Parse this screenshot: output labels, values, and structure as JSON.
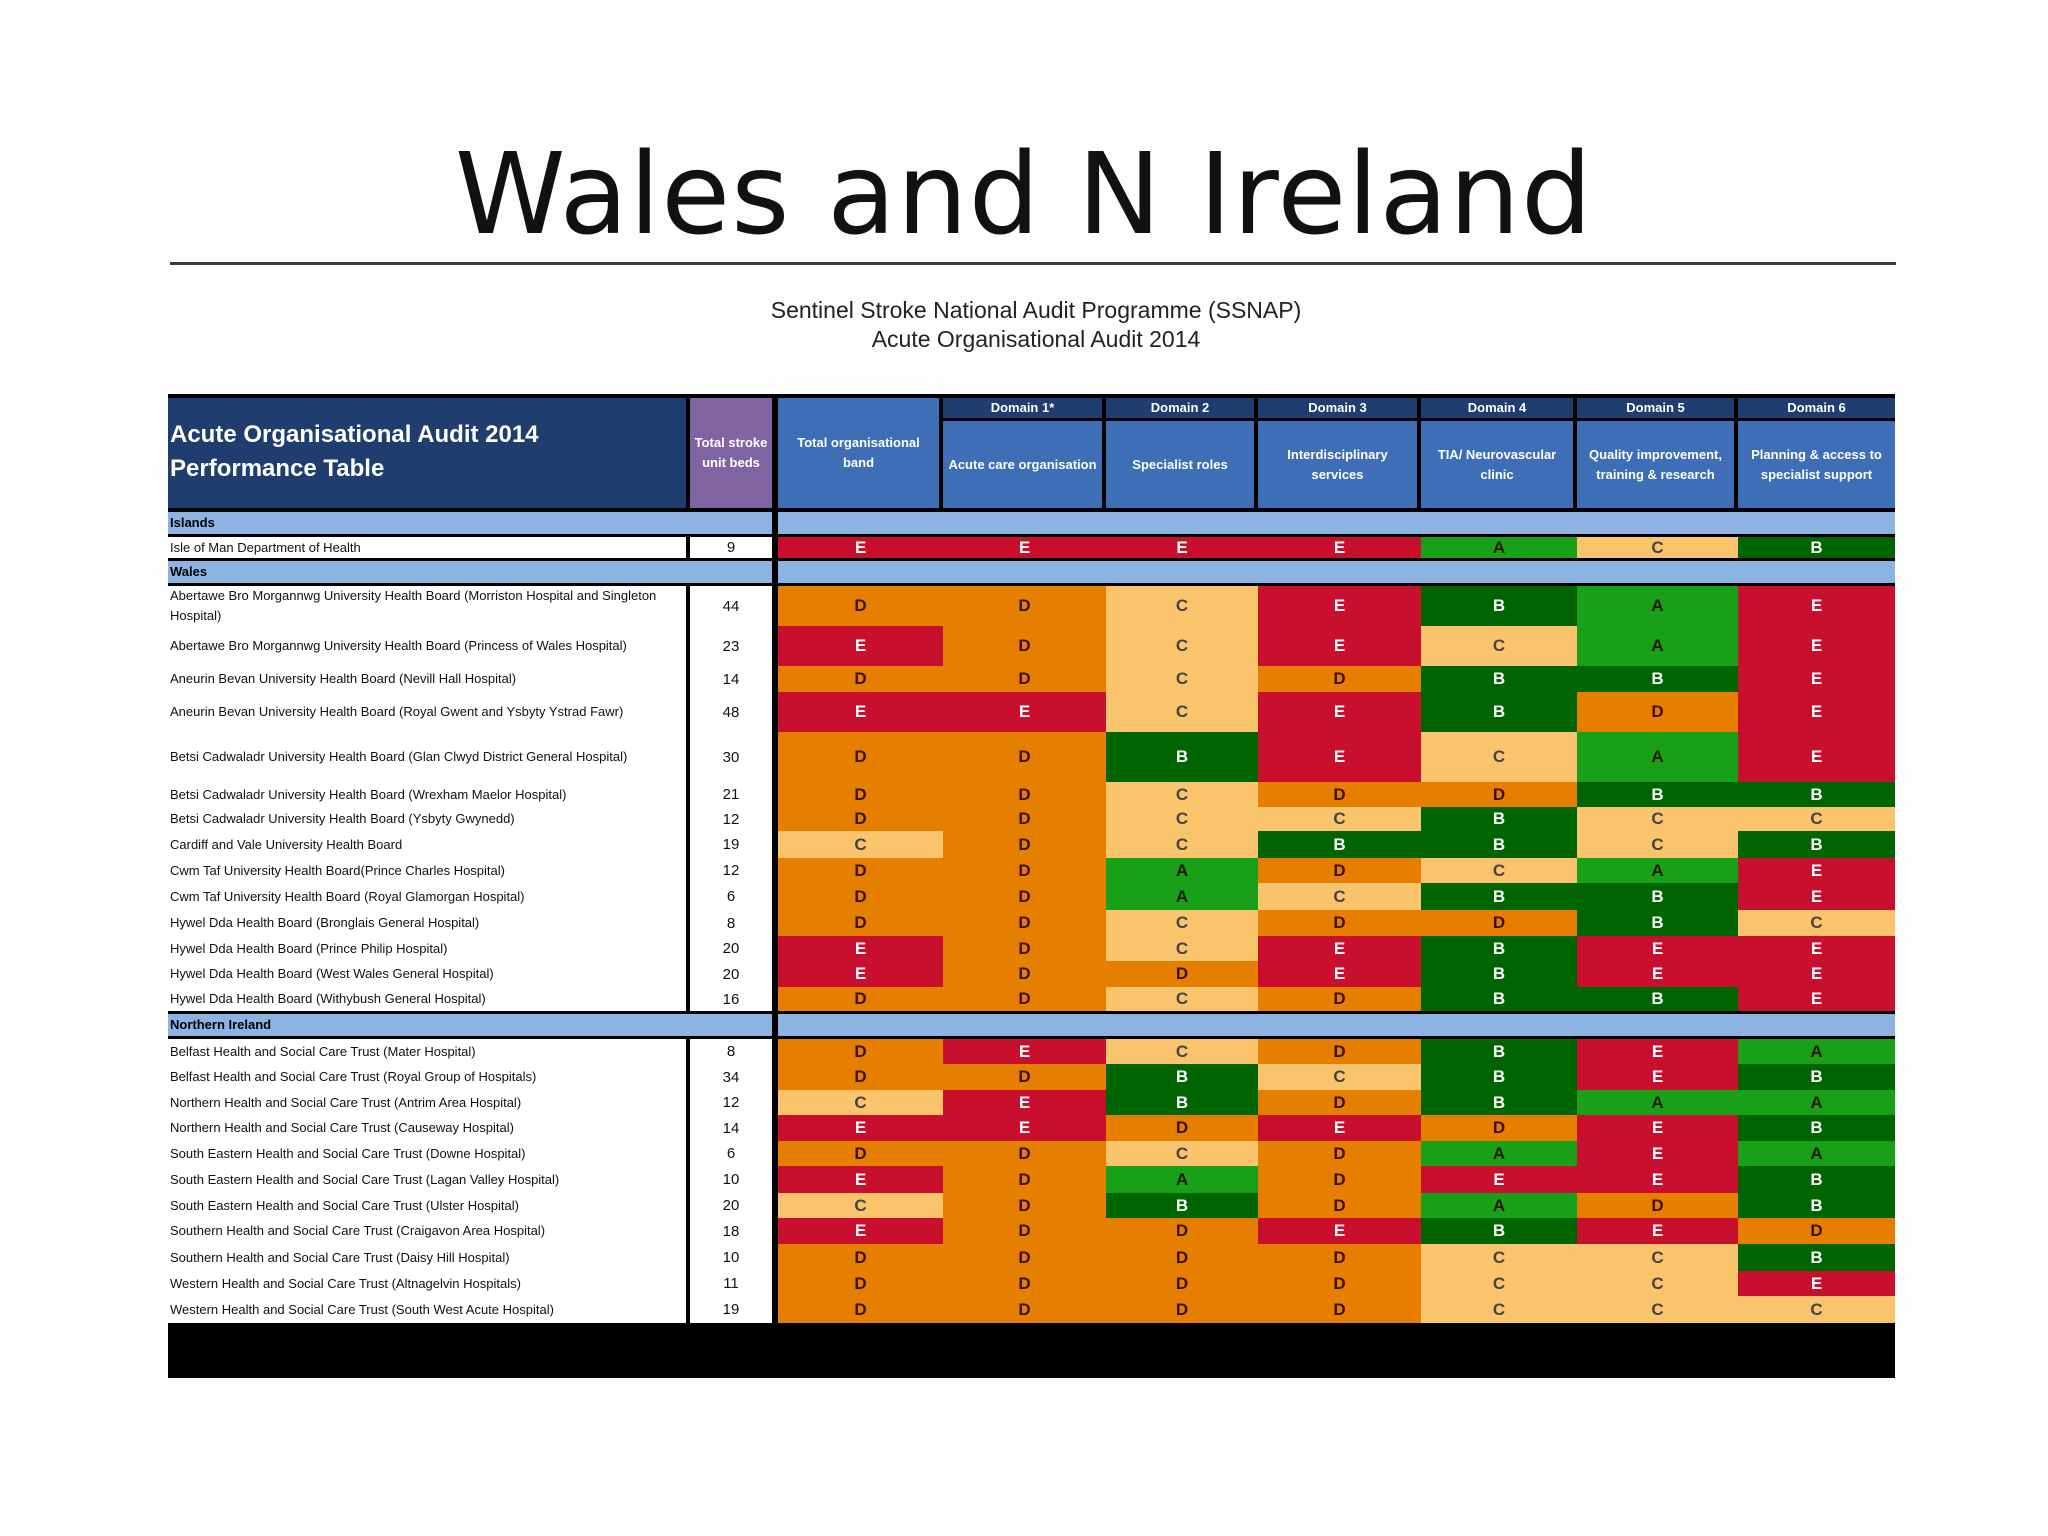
{
  "slide": {
    "title": "Wales and N Ireland",
    "subtitle_line1": "Sentinel Stroke National Audit Programme (SSNAP)",
    "subtitle_line2": "Acute Organisational Audit 2014"
  },
  "grade_colors": {
    "A": {
      "bg": "#17a018",
      "fg": "#2a1800"
    },
    "B": {
      "bg": "#006400",
      "fg": "#ffffff"
    },
    "C": {
      "bg": "#fac46d",
      "fg": "#444444"
    },
    "D": {
      "bg": "#e67e00",
      "fg": "#3a1000"
    },
    "E": {
      "bg": "#c8102e",
      "fg": "#ffffff"
    }
  },
  "table": {
    "title": "Acute Organisational Audit 2014 Performance Table",
    "beds_header": "Total stroke unit beds",
    "band_header": "Total organisational band",
    "domains": [
      {
        "name": "Domain 1*",
        "label": "Acute care organisation"
      },
      {
        "name": "Domain 2",
        "label": "Specialist roles"
      },
      {
        "name": "Domain 3",
        "label": "Interdisciplinary services"
      },
      {
        "name": "Domain 4",
        "label": "TIA/ Neurovascular clinic"
      },
      {
        "name": "Domain 5",
        "label": "Quality improvement, training & research"
      },
      {
        "name": "Domain 6",
        "label": "Planning & access to specialist support"
      }
    ],
    "sections": [
      {
        "name": "Islands",
        "rows": [
          {
            "name": "Isle of Man Department of Health",
            "beds": "9",
            "grades": [
              "E",
              "E",
              "E",
              "E",
              "A",
              "C",
              "B"
            ]
          }
        ]
      },
      {
        "name": "Wales",
        "rows": [
          {
            "name": "Abertawe Bro Morgannwg University Health Board (Morriston Hospital and Singleton Hospital)",
            "beds": "44",
            "grades": [
              "D",
              "D",
              "C",
              "E",
              "B",
              "A",
              "E"
            ]
          },
          {
            "name": "Abertawe Bro Morgannwg University Health Board (Princess of Wales Hospital)",
            "beds": "23",
            "grades": [
              "E",
              "D",
              "C",
              "E",
              "C",
              "A",
              "E"
            ]
          },
          {
            "name": "Aneurin Bevan University Health Board (Nevill Hall Hospital)",
            "beds": "14",
            "grades": [
              "D",
              "D",
              "C",
              "D",
              "B",
              "B",
              "E"
            ]
          },
          {
            "name": "Aneurin Bevan University Health Board (Royal Gwent and Ysbyty Ystrad Fawr)",
            "beds": "48",
            "grades": [
              "E",
              "E",
              "C",
              "E",
              "B",
              "D",
              "E"
            ]
          },
          {
            "name": "Betsi Cadwaladr University Health Board (Glan Clwyd District General Hospital)",
            "beds": "30",
            "grades": [
              "D",
              "D",
              "B",
              "E",
              "C",
              "A",
              "E"
            ]
          },
          {
            "name": "Betsi Cadwaladr University Health Board (Wrexham Maelor Hospital)",
            "beds": "21",
            "grades": [
              "D",
              "D",
              "C",
              "D",
              "D",
              "B",
              "B"
            ]
          },
          {
            "name": "Betsi Cadwaladr University Health Board (Ysbyty Gwynedd)",
            "beds": "12",
            "grades": [
              "D",
              "D",
              "C",
              "C",
              "B",
              "C",
              "C"
            ]
          },
          {
            "name": "Cardiff and Vale University Health Board",
            "beds": "19",
            "grades": [
              "C",
              "D",
              "C",
              "B",
              "B",
              "C",
              "B"
            ]
          },
          {
            "name": "Cwm Taf University Health Board(Prince Charles Hospital)",
            "beds": "12",
            "grades": [
              "D",
              "D",
              "A",
              "D",
              "C",
              "A",
              "E"
            ]
          },
          {
            "name": "Cwm Taf University Health Board (Royal Glamorgan Hospital)",
            "beds": "6",
            "grades": [
              "D",
              "D",
              "A",
              "C",
              "B",
              "B",
              "E"
            ]
          },
          {
            "name": "Hywel Dda Health Board (Bronglais General Hospital)",
            "beds": "8",
            "grades": [
              "D",
              "D",
              "C",
              "D",
              "D",
              "B",
              "C"
            ]
          },
          {
            "name": "Hywel Dda Health Board (Prince Philip Hospital)",
            "beds": "20",
            "grades": [
              "E",
              "D",
              "C",
              "E",
              "B",
              "E",
              "E"
            ]
          },
          {
            "name": "Hywel Dda Health Board (West Wales General Hospital)",
            "beds": "20",
            "grades": [
              "E",
              "D",
              "D",
              "E",
              "B",
              "E",
              "E"
            ]
          },
          {
            "name": "Hywel Dda Health Board (Withybush General Hospital)",
            "beds": "16",
            "grades": [
              "D",
              "D",
              "C",
              "D",
              "B",
              "B",
              "E"
            ]
          }
        ]
      },
      {
        "name": "Northern Ireland",
        "rows": [
          {
            "name": "Belfast Health and Social Care Trust (Mater Hospital)",
            "beds": "8",
            "grades": [
              "D",
              "E",
              "C",
              "D",
              "B",
              "E",
              "A"
            ]
          },
          {
            "name": "Belfast Health and Social Care Trust (Royal Group of Hospitals)",
            "beds": "34",
            "grades": [
              "D",
              "D",
              "B",
              "C",
              "B",
              "E",
              "B"
            ]
          },
          {
            "name": "Northern Health and Social Care Trust (Antrim Area Hospital)",
            "beds": "12",
            "grades": [
              "C",
              "E",
              "B",
              "D",
              "B",
              "A",
              "A"
            ]
          },
          {
            "name": "Northern Health and Social Care Trust (Causeway Hospital)",
            "beds": "14",
            "grades": [
              "E",
              "E",
              "D",
              "E",
              "D",
              "E",
              "B"
            ]
          },
          {
            "name": "South Eastern Health and Social Care Trust (Downe Hospital)",
            "beds": "6",
            "grades": [
              "D",
              "D",
              "C",
              "D",
              "A",
              "E",
              "A"
            ]
          },
          {
            "name": "South Eastern Health and Social Care Trust (Lagan Valley Hospital)",
            "beds": "10",
            "grades": [
              "E",
              "D",
              "A",
              "D",
              "E",
              "E",
              "B"
            ]
          },
          {
            "name": "South Eastern Health and Social Care Trust (Ulster Hospital)",
            "beds": "20",
            "grades": [
              "C",
              "D",
              "B",
              "D",
              "A",
              "D",
              "B"
            ]
          },
          {
            "name": "Southern Health and Social Care Trust (Craigavon Area Hospital)",
            "beds": "18",
            "grades": [
              "E",
              "D",
              "D",
              "E",
              "B",
              "E",
              "D"
            ]
          },
          {
            "name": "Southern Health and Social Care Trust (Daisy Hill Hospital)",
            "beds": "10",
            "grades": [
              "D",
              "D",
              "D",
              "D",
              "C",
              "C",
              "B"
            ]
          },
          {
            "name": "Western Health and Social Care Trust (Altnagelvin Hospitals)",
            "beds": "11",
            "grades": [
              "D",
              "D",
              "D",
              "D",
              "C",
              "C",
              "E"
            ]
          },
          {
            "name": "Western Health and Social Care Trust (South West Acute Hospital)",
            "beds": "19",
            "grades": [
              "D",
              "D",
              "D",
              "D",
              "C",
              "C",
              "C"
            ]
          }
        ]
      }
    ]
  }
}
